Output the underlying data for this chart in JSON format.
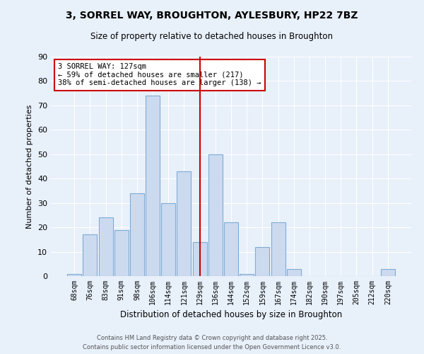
{
  "title": "3, SORREL WAY, BROUGHTON, AYLESBURY, HP22 7BZ",
  "subtitle": "Size of property relative to detached houses in Broughton",
  "xlabel": "Distribution of detached houses by size in Broughton",
  "ylabel": "Number of detached properties",
  "bar_labels": [
    "68sqm",
    "76sqm",
    "83sqm",
    "91sqm",
    "98sqm",
    "106sqm",
    "114sqm",
    "121sqm",
    "129sqm",
    "136sqm",
    "144sqm",
    "152sqm",
    "159sqm",
    "167sqm",
    "174sqm",
    "182sqm",
    "190sqm",
    "197sqm",
    "205sqm",
    "212sqm",
    "220sqm"
  ],
  "bar_values": [
    1,
    17,
    24,
    19,
    34,
    74,
    30,
    43,
    14,
    50,
    22,
    1,
    12,
    22,
    3,
    0,
    0,
    0,
    0,
    0,
    3
  ],
  "bar_color": "#ccdaf0",
  "bar_edge_color": "#7fabd4",
  "vline_index": 8,
  "vline_color": "#cc0000",
  "annotation_title": "3 SORREL WAY: 127sqm",
  "annotation_line1": "← 59% of detached houses are smaller (217)",
  "annotation_line2": "38% of semi-detached houses are larger (138) →",
  "annotation_box_edgecolor": "#cc0000",
  "ylim": [
    0,
    90
  ],
  "yticks": [
    0,
    10,
    20,
    30,
    40,
    50,
    60,
    70,
    80,
    90
  ],
  "bg_color": "#e8f0fa",
  "grid_color": "#ffffff",
  "footer_line1": "Contains HM Land Registry data © Crown copyright and database right 2025.",
  "footer_line2": "Contains public sector information licensed under the Open Government Licence v3.0."
}
